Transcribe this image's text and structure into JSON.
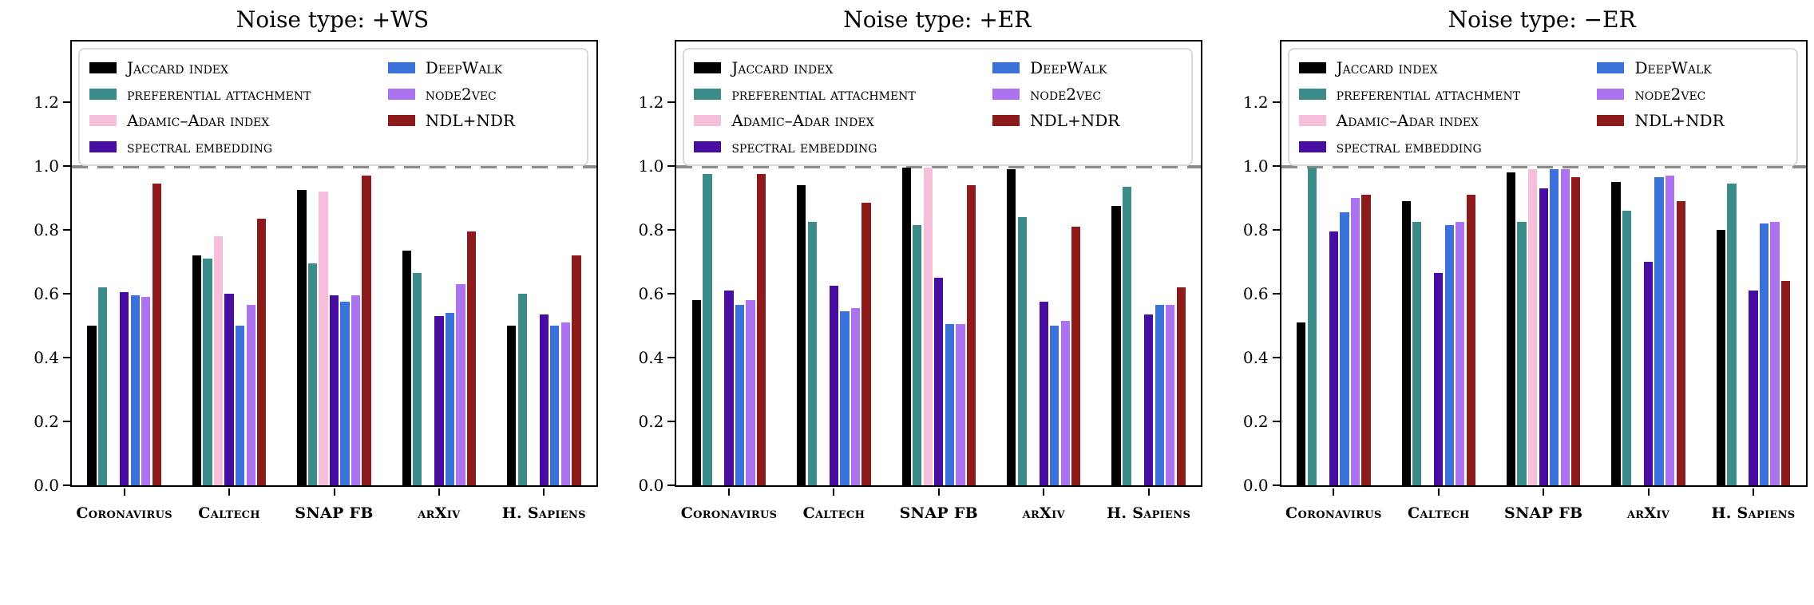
{
  "figure": {
    "background": "#ffffff",
    "baseline_value": 1.0,
    "baseline_color": "#8c8c8c",
    "axis_color": "#000000",
    "ytick_labels": [
      "0.0",
      "0.2",
      "0.4",
      "0.6",
      "0.8",
      "1.0",
      "1.2"
    ],
    "legend_columns": [
      4,
      3
    ],
    "method_colors": {
      "jaccard-index": "#000000",
      "preferential-attachment": "#3d8c8c",
      "adamic-adar-index": "#f5bedb",
      "spectral-embedding": "#470da0",
      "deepwalk": "#3b72d9",
      "node2vec": "#ad72f0",
      "ndl-ndr": "#8e1b1b"
    }
  },
  "chart_data": [
    {
      "type": "bar",
      "title": "Noise type: +WS",
      "xlabel": "",
      "ylabel": "",
      "ylim": [
        0,
        1.39
      ],
      "yticks": [
        0.0,
        0.2,
        0.4,
        0.6,
        0.8,
        1.0,
        1.2
      ],
      "grid": false,
      "baseline": 1.0,
      "legend_position": "upper left",
      "categories": [
        "Coronavirus",
        "Caltech",
        "SNAP FB",
        "arXiv",
        "H. Sapiens"
      ],
      "series": [
        {
          "name": "Jaccard index",
          "color": "#000000",
          "values": [
            0.5,
            0.72,
            0.925,
            0.735,
            0.5
          ]
        },
        {
          "name": "preferential attachment",
          "color": "#3d8c8c",
          "values": [
            0.62,
            0.71,
            0.695,
            0.665,
            0.6
          ]
        },
        {
          "name": "Adamic–Adar index",
          "color": "#f5bedb",
          "values": [
            0,
            0.78,
            0.92,
            0,
            0
          ]
        },
        {
          "name": "spectral embedding",
          "color": "#470da0",
          "values": [
            0.605,
            0.6,
            0.595,
            0.53,
            0.535
          ]
        },
        {
          "name": "DeepWalk",
          "color": "#3b72d9",
          "values": [
            0.595,
            0.5,
            0.575,
            0.54,
            0.5
          ]
        },
        {
          "name": "node2vec",
          "color": "#ad72f0",
          "values": [
            0.59,
            0.565,
            0.595,
            0.63,
            0.51
          ]
        },
        {
          "name": "NDL+NDR",
          "color": "#8e1b1b",
          "values": [
            0.945,
            0.835,
            0.97,
            0.795,
            0.72
          ]
        }
      ]
    },
    {
      "type": "bar",
      "title": "Noise type: +ER",
      "xlabel": "",
      "ylabel": "",
      "ylim": [
        0,
        1.39
      ],
      "yticks": [
        0.0,
        0.2,
        0.4,
        0.6,
        0.8,
        1.0,
        1.2
      ],
      "grid": false,
      "baseline": 1.0,
      "legend_position": "upper left",
      "categories": [
        "Coronavirus",
        "Caltech",
        "SNAP FB",
        "arXiv",
        "H. Sapiens"
      ],
      "series": [
        {
          "name": "Jaccard index",
          "color": "#000000",
          "values": [
            0.58,
            0.94,
            0.995,
            0.99,
            0.875
          ]
        },
        {
          "name": "preferential attachment",
          "color": "#3d8c8c",
          "values": [
            0.975,
            0.825,
            0.815,
            0.84,
            0.935
          ]
        },
        {
          "name": "Adamic–Adar index",
          "color": "#f5bedb",
          "values": [
            0,
            0,
            0.995,
            0,
            0
          ]
        },
        {
          "name": "spectral embedding",
          "color": "#470da0",
          "values": [
            0.61,
            0.625,
            0.65,
            0.575,
            0.535
          ]
        },
        {
          "name": "DeepWalk",
          "color": "#3b72d9",
          "values": [
            0.565,
            0.545,
            0.505,
            0.5,
            0.565
          ]
        },
        {
          "name": "node2vec",
          "color": "#ad72f0",
          "values": [
            0.58,
            0.555,
            0.505,
            0.515,
            0.565
          ]
        },
        {
          "name": "NDL+NDR",
          "color": "#8e1b1b",
          "values": [
            0.975,
            0.885,
            0.94,
            0.81,
            0.62
          ]
        }
      ]
    },
    {
      "type": "bar",
      "title": "Noise type: −ER",
      "xlabel": "",
      "ylabel": "",
      "ylim": [
        0,
        1.39
      ],
      "yticks": [
        0.0,
        0.2,
        0.4,
        0.6,
        0.8,
        1.0,
        1.2
      ],
      "grid": false,
      "baseline": 1.0,
      "legend_position": "upper left",
      "categories": [
        "Coronavirus",
        "Caltech",
        "SNAP FB",
        "arXiv",
        "H. Sapiens"
      ],
      "series": [
        {
          "name": "Jaccard index",
          "color": "#000000",
          "values": [
            0.51,
            0.89,
            0.98,
            0.95,
            0.8
          ]
        },
        {
          "name": "preferential attachment",
          "color": "#3d8c8c",
          "values": [
            0.995,
            0.825,
            0.825,
            0.86,
            0.945
          ]
        },
        {
          "name": "Adamic–Adar index",
          "color": "#f5bedb",
          "values": [
            0,
            0,
            0.99,
            0,
            0
          ]
        },
        {
          "name": "spectral embedding",
          "color": "#470da0",
          "values": [
            0.795,
            0.665,
            0.93,
            0.7,
            0.61
          ]
        },
        {
          "name": "DeepWalk",
          "color": "#3b72d9",
          "values": [
            0.855,
            0.815,
            0.99,
            0.965,
            0.82
          ]
        },
        {
          "name": "node2vec",
          "color": "#ad72f0",
          "values": [
            0.9,
            0.825,
            0.99,
            0.97,
            0.825
          ]
        },
        {
          "name": "NDL+NDR",
          "color": "#8e1b1b",
          "values": [
            0.91,
            0.91,
            0.965,
            0.89,
            0.64
          ]
        }
      ]
    }
  ]
}
